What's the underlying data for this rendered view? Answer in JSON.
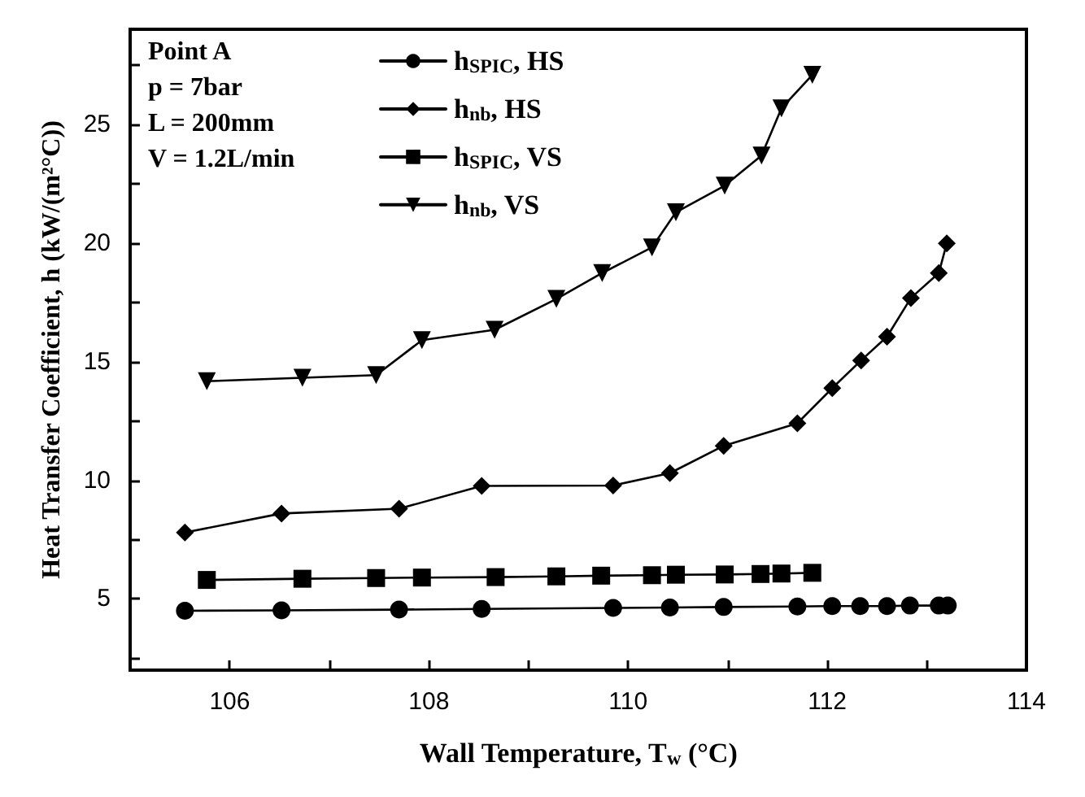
{
  "chart_data": {
    "type": "line",
    "xlabel": "Wall Temperature, T$_{w}$ (°C)",
    "ylabel": "Heat Transfer Coefficient, h (kW/(m²°C))",
    "annotations": [
      "Point A",
      "p = 7bar",
      "L = 200mm",
      "V = 1.2L/min"
    ],
    "xlim": [
      105,
      114
    ],
    "xticks": [
      106,
      {
        "value": 107,
        "label": null
      },
      108,
      {
        "value": 109,
        "label": null
      },
      110,
      {
        "value": 111,
        "label": null
      },
      112,
      {
        "value": 113,
        "label": null
      },
      114
    ],
    "ylim": [
      2,
      29
    ],
    "yticks": [
      {
        "value": 2.5,
        "label": null
      },
      5,
      {
        "value": 7.5,
        "label": null
      },
      10,
      {
        "value": 12.5,
        "label": null
      },
      15,
      {
        "value": 17.5,
        "label": null
      },
      20,
      {
        "value": 22.5,
        "label": null
      },
      25,
      {
        "value": 27.5,
        "label": null
      }
    ],
    "grid": false,
    "legend": "top left",
    "line_style": "solid",
    "series": [
      {
        "name": "h$_{SPIC}$, HS",
        "color": "#000000",
        "marker": "circle",
        "x": [
          105.55,
          106.52,
          107.7,
          108.53,
          109.85,
          110.42,
          110.96,
          111.7,
          112.05,
          112.33,
          112.6,
          112.83,
          113.12,
          113.21
        ],
        "values": [
          4.5,
          4.52,
          4.55,
          4.58,
          4.62,
          4.64,
          4.66,
          4.68,
          4.7,
          4.7,
          4.7,
          4.72,
          4.72,
          4.72
        ]
      },
      {
        "name": "h$_{nb}$, HS",
        "color": "#000000",
        "marker": "diamond",
        "x": [
          105.55,
          106.52,
          107.7,
          108.53,
          109.85,
          110.42,
          110.96,
          111.7,
          112.05,
          112.34,
          112.6,
          112.84,
          113.12,
          113.2
        ],
        "values": [
          7.8,
          8.6,
          8.8,
          9.76,
          9.78,
          10.3,
          11.45,
          12.4,
          13.88,
          15.05,
          16.05,
          17.68,
          18.73,
          19.98
        ]
      },
      {
        "name": "h$_{SPIC}$, VS",
        "color": "#000000",
        "marker": "square",
        "x": [
          105.77,
          106.73,
          107.47,
          107.93,
          108.67,
          109.28,
          109.73,
          110.24,
          110.48,
          110.97,
          111.33,
          111.54,
          111.85
        ],
        "values": [
          5.8,
          5.85,
          5.88,
          5.9,
          5.92,
          5.95,
          5.98,
          6.0,
          6.02,
          6.03,
          6.05,
          6.07,
          6.1
        ]
      },
      {
        "name": "h$_{nb}$, VS",
        "color": "#000000",
        "marker": "triangle-down",
        "x": [
          105.77,
          106.73,
          107.47,
          107.93,
          108.66,
          109.28,
          109.74,
          110.24,
          110.48,
          110.97,
          111.34,
          111.54,
          111.85
        ],
        "values": [
          14.17,
          14.32,
          14.43,
          15.9,
          16.34,
          17.64,
          18.73,
          19.81,
          21.29,
          22.41,
          23.68,
          25.67,
          27.08
        ]
      }
    ]
  }
}
